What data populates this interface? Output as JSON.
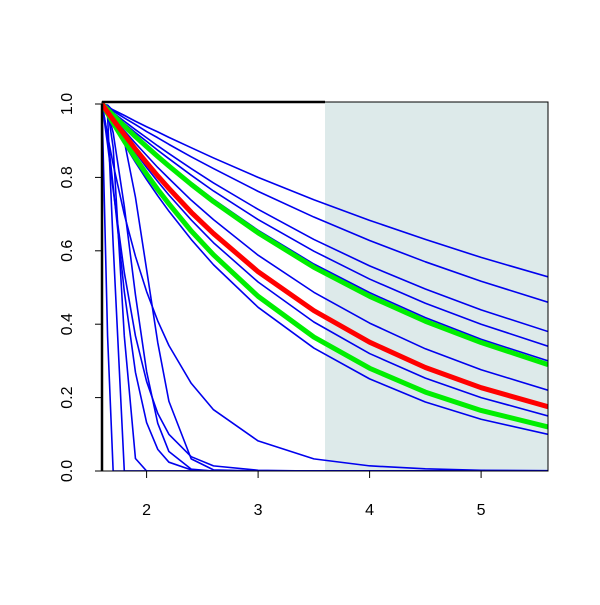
{
  "chart_data": {
    "type": "line",
    "x": [
      1.6,
      1.65,
      1.7,
      1.8,
      1.9,
      2.0,
      2.1,
      2.2,
      2.4,
      2.6,
      3.0,
      3.5,
      4.0,
      4.5,
      5.0,
      5.6
    ],
    "xlim": [
      1.6,
      5.6
    ],
    "xticks": [
      2,
      3,
      4,
      5
    ],
    "ylim": [
      0,
      1
    ],
    "yticks": [
      {
        "value": 0,
        "label": "0.0"
      },
      0.2,
      0.4,
      0.6,
      0.8,
      {
        "value": 1,
        "label": "1.0"
      }
    ],
    "shade_x": [
      3.6,
      5.6
    ],
    "shade_color": "#ddeaea",
    "series": [
      {
        "color": "#0000ee",
        "values": [
          1,
          0.992,
          0.984,
          0.969,
          0.953,
          0.938,
          0.924,
          0.909,
          0.881,
          0.853,
          0.8,
          0.739,
          0.683,
          0.631,
          0.582,
          0.529
        ]
      },
      {
        "color": "#0000ee",
        "values": [
          1,
          0.99,
          0.981,
          0.962,
          0.944,
          0.925,
          0.908,
          0.89,
          0.856,
          0.824,
          0.762,
          0.692,
          0.628,
          0.57,
          0.517,
          0.46
        ]
      },
      {
        "color": "#0000ee",
        "values": [
          1,
          0.988,
          0.976,
          0.953,
          0.93,
          0.908,
          0.886,
          0.865,
          0.824,
          0.785,
          0.713,
          0.631,
          0.559,
          0.496,
          0.439,
          0.38
        ]
      },
      {
        "color": "#0000ee",
        "values": [
          1,
          0.987,
          0.973,
          0.947,
          0.922,
          0.898,
          0.874,
          0.851,
          0.806,
          0.763,
          0.685,
          0.599,
          0.523,
          0.457,
          0.4,
          0.34
        ]
      },
      {
        "color": "#0000ee",
        "values": [
          1,
          0.985,
          0.97,
          0.942,
          0.914,
          0.887,
          0.86,
          0.835,
          0.786,
          0.74,
          0.656,
          0.564,
          0.486,
          0.418,
          0.359,
          0.3
        ]
      },
      {
        "color": "#0000ee",
        "values": [
          1,
          0.981,
          0.963,
          0.927,
          0.893,
          0.86,
          0.827,
          0.797,
          0.738,
          0.685,
          0.588,
          0.487,
          0.403,
          0.333,
          0.276,
          0.22
        ]
      },
      {
        "color": "#0000ee",
        "values": [
          1,
          0.977,
          0.954,
          0.91,
          0.868,
          0.827,
          0.789,
          0.752,
          0.684,
          0.622,
          0.515,
          0.406,
          0.32,
          0.253,
          0.2,
          0.15
        ]
      },
      {
        "color": "#0000ee",
        "values": [
          1,
          0.972,
          0.944,
          0.891,
          0.841,
          0.794,
          0.75,
          0.708,
          0.631,
          0.562,
          0.446,
          0.335,
          0.251,
          0.188,
          0.141,
          0.1
        ]
      },
      {
        "color": "#0000ee",
        "values": [
          1,
          0.914,
          0.836,
          0.699,
          0.585,
          0.489,
          0.409,
          0.342,
          0.239,
          0.167,
          0.082,
          0.033,
          0.014,
          0.006,
          0.002,
          0.001
        ]
      },
      {
        "color": "#0000ee",
        "values": [
          1,
          0.997,
          0.981,
          0.899,
          0.746,
          0.549,
          0.35,
          0.19,
          0.033,
          0.003,
          0,
          0,
          0,
          0,
          0,
          0
        ]
      },
      {
        "color": "#0000ee",
        "values": [
          1,
          0.89,
          0.766,
          0.541,
          0.368,
          0.244,
          0.157,
          0.1,
          0.039,
          0.014,
          0.002,
          0,
          0,
          0,
          0,
          0
        ]
      },
      {
        "color": "#0000ee",
        "values": [
          1,
          0.98,
          0.922,
          0.721,
          0.48,
          0.271,
          0.13,
          0.053,
          0.005,
          0,
          0,
          0,
          0,
          0,
          0,
          0
        ]
      },
      {
        "color": "#0000ee",
        "values": [
          1,
          0.915,
          0.776,
          0.489,
          0.269,
          0.132,
          0.059,
          0.024,
          0.003,
          0,
          0,
          0,
          0,
          0,
          0,
          0
        ]
      },
      {
        "color": "#0000ee",
        "values": [
          1,
          0.368,
          0,
          0,
          0,
          0,
          0,
          0,
          0,
          0,
          0,
          0,
          0,
          0,
          0,
          0
        ]
      },
      {
        "color": "#0000ee",
        "values": [
          1,
          0.97,
          0.618,
          0,
          0,
          0,
          0,
          0,
          0,
          0,
          0,
          0,
          0,
          0,
          0,
          0
        ]
      },
      {
        "color": "#0000ee",
        "values": [
          1,
          0.985,
          0.882,
          0.368,
          0.034,
          0,
          0,
          0,
          0,
          0,
          0,
          0,
          0,
          0,
          0,
          0
        ]
      },
      {
        "color": "#00ee00",
        "highlight": true,
        "values": [
          1,
          0.985,
          0.97,
          0.94,
          0.911,
          0.884,
          0.857,
          0.831,
          0.781,
          0.734,
          0.649,
          0.555,
          0.476,
          0.408,
          0.35,
          0.29
        ]
      },
      {
        "color": "#00ee00",
        "highlight": true,
        "values": [
          1,
          0.974,
          0.948,
          0.899,
          0.853,
          0.809,
          0.767,
          0.728,
          0.654,
          0.589,
          0.476,
          0.365,
          0.28,
          0.215,
          0.165,
          0.12
        ]
      },
      {
        "color": "#ff0000",
        "highlight": true,
        "values": [
          1,
          0.978,
          0.957,
          0.917,
          0.877,
          0.84,
          0.804,
          0.77,
          0.705,
          0.647,
          0.543,
          0.437,
          0.351,
          0.282,
          0.227,
          0.175
        ]
      }
    ]
  }
}
